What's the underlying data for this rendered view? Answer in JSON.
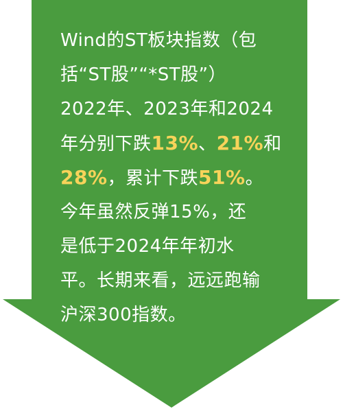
{
  "colors": {
    "arrow_green": "#4a9c3f",
    "text": "#ffffff",
    "highlight": "#f7d35a"
  },
  "content": {
    "lines": [
      [
        {
          "t": "Wind的ST板块指数（包"
        }
      ],
      [
        {
          "t": "括“ST股”“*ST股”）"
        }
      ],
      [
        {
          "t": "2022年、2023年和2024"
        }
      ],
      [
        {
          "t": "年分别下跌"
        },
        {
          "t": "13%",
          "hl": true
        },
        {
          "t": "、"
        },
        {
          "t": "21%",
          "hl": true
        },
        {
          "t": "和"
        }
      ],
      [
        {
          "t": "28%",
          "hl": true
        },
        {
          "t": "，累计下跌"
        },
        {
          "t": "51%",
          "hl": true
        },
        {
          "t": "。"
        }
      ],
      [
        {
          "t": "今年虽然反弹15%，还"
        }
      ],
      [
        {
          "t": "是低于2024年年初水"
        }
      ],
      [
        {
          "t": "平。长期来看，远远跑输"
        }
      ],
      [
        {
          "t": "沪深300指数。"
        }
      ]
    ]
  }
}
